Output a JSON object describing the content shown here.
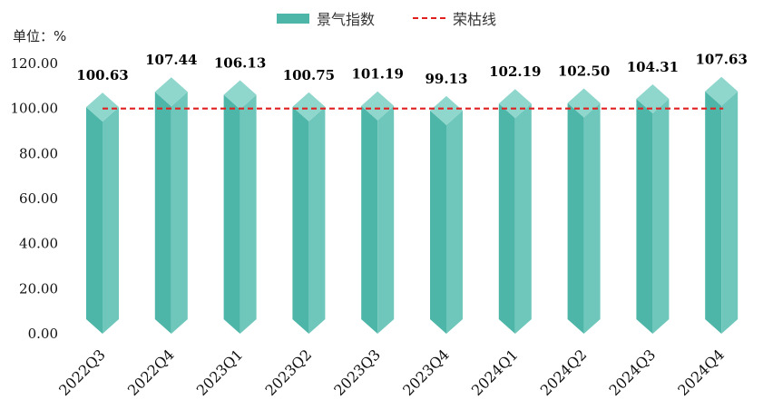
{
  "legend": {
    "bar_label": "景气指数",
    "line_label": "荣枯线"
  },
  "unit_label": "单位：%",
  "colors": {
    "bar_front": "#4db6a8",
    "bar_side": "#6fc7bc",
    "bar_top": "#8fd6cd",
    "line": "#e02020"
  },
  "chart_data": {
    "type": "bar",
    "categories": [
      "2022Q3",
      "2022Q4",
      "2023Q1",
      "2023Q2",
      "2023Q3",
      "2023Q4",
      "2024Q1",
      "2024Q2",
      "2024Q3",
      "2024Q4"
    ],
    "series": [
      {
        "name": "景气指数",
        "values": [
          100.63,
          107.44,
          106.13,
          100.75,
          101.19,
          99.13,
          102.19,
          102.5,
          104.31,
          107.63
        ]
      }
    ],
    "reference_line": {
      "name": "荣枯线",
      "value": 100
    },
    "ylim": [
      0,
      120
    ],
    "yticks": [
      "0.00",
      "20.00",
      "40.00",
      "60.00",
      "80.00",
      "100.00",
      "120.00"
    ],
    "grid": false,
    "legend_position": "top-center"
  }
}
